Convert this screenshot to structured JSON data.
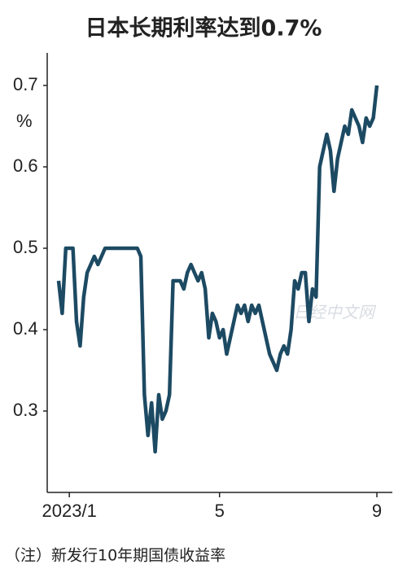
{
  "chart_data": {
    "type": "line",
    "title": "日本长期利率达到0.7%",
    "y_unit": "%",
    "note": "（注）新发行10年期国债收益率",
    "watermark": "日经中文网",
    "categories": [
      null,
      null,
      null,
      "2023/1",
      null,
      null,
      null,
      null,
      null,
      null,
      null,
      null,
      null,
      null,
      null,
      null,
      null,
      null,
      null,
      null,
      null,
      null,
      null,
      null,
      null,
      null,
      null,
      null,
      null,
      null,
      null,
      null,
      null,
      null,
      null,
      null,
      null,
      null,
      null,
      null,
      null,
      null,
      null,
      null,
      null,
      "5",
      null,
      null,
      null,
      null,
      null,
      null,
      null,
      null,
      null,
      null,
      null,
      null,
      null,
      null,
      null,
      null,
      null,
      null,
      null,
      null,
      null,
      null,
      null,
      null,
      null,
      null,
      null,
      null,
      null,
      null,
      null,
      null,
      null,
      null,
      null,
      null,
      null,
      null,
      null,
      null,
      null,
      null,
      null,
      "9"
    ],
    "series": [
      {
        "name": "10年期国债收益率",
        "color": "#1d4a63",
        "values": [
          0.46,
          0.42,
          0.5,
          0.5,
          0.5,
          0.41,
          0.38,
          0.44,
          0.47,
          0.48,
          0.49,
          0.48,
          0.49,
          0.5,
          0.5,
          0.5,
          0.5,
          0.5,
          0.5,
          0.5,
          0.5,
          0.5,
          0.5,
          0.49,
          0.32,
          0.27,
          0.31,
          0.25,
          0.32,
          0.29,
          0.3,
          0.32,
          0.46,
          0.46,
          0.46,
          0.45,
          0.47,
          0.48,
          0.47,
          0.46,
          0.47,
          0.45,
          0.39,
          0.42,
          0.41,
          0.39,
          0.4,
          0.37,
          0.39,
          0.41,
          0.43,
          0.42,
          0.43,
          0.41,
          0.43,
          0.42,
          0.43,
          0.41,
          0.39,
          0.37,
          0.36,
          0.35,
          0.37,
          0.38,
          0.37,
          0.4,
          0.46,
          0.45,
          0.47,
          0.47,
          0.41,
          0.45,
          0.44,
          0.6,
          0.62,
          0.64,
          0.62,
          0.57,
          0.61,
          0.63,
          0.65,
          0.64,
          0.67,
          0.66,
          0.65,
          0.63,
          0.66,
          0.65,
          0.66,
          0.7
        ]
      }
    ],
    "ylim": [
      0.2,
      0.74
    ],
    "yticks": [
      0.3,
      0.4,
      0.5,
      0.6,
      0.7
    ],
    "grid": false
  }
}
